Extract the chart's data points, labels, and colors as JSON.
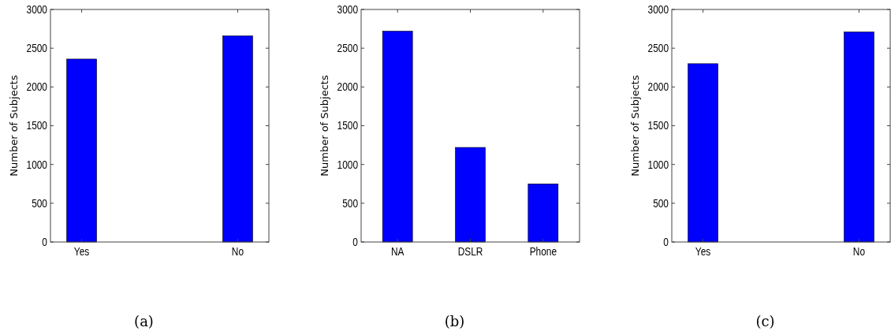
{
  "chart_data": [
    {
      "type": "bar",
      "categories": [
        "Yes",
        "No"
      ],
      "values": [
        2360,
        2660
      ],
      "color": "#0000ff",
      "ylabel": "Number of Subjects",
      "ylim": [
        0,
        3000
      ],
      "yticks": [
        0,
        500,
        1000,
        1500,
        2000,
        2500,
        3000
      ],
      "grid": false,
      "annotations": [
        "(a)"
      ]
    },
    {
      "type": "bar",
      "categories": [
        "NA",
        "DSLR",
        "Phone"
      ],
      "values": [
        2720,
        1220,
        750
      ],
      "color": "#0000ff",
      "ylabel": "Number of Subjects",
      "ylim": [
        0,
        3000
      ],
      "yticks": [
        0,
        500,
        1000,
        1500,
        2000,
        2500,
        3000
      ],
      "grid": false,
      "annotations": [
        "(b)"
      ]
    },
    {
      "type": "bar",
      "categories": [
        "Yes",
        "No"
      ],
      "values": [
        2300,
        2710
      ],
      "color": "#0000ff",
      "ylabel": "Number of Subjects",
      "ylim": [
        0,
        3000
      ],
      "yticks": [
        0,
        500,
        1000,
        1500,
        2000,
        2500,
        3000
      ],
      "grid": false,
      "annotations": [
        "(c)"
      ]
    }
  ]
}
